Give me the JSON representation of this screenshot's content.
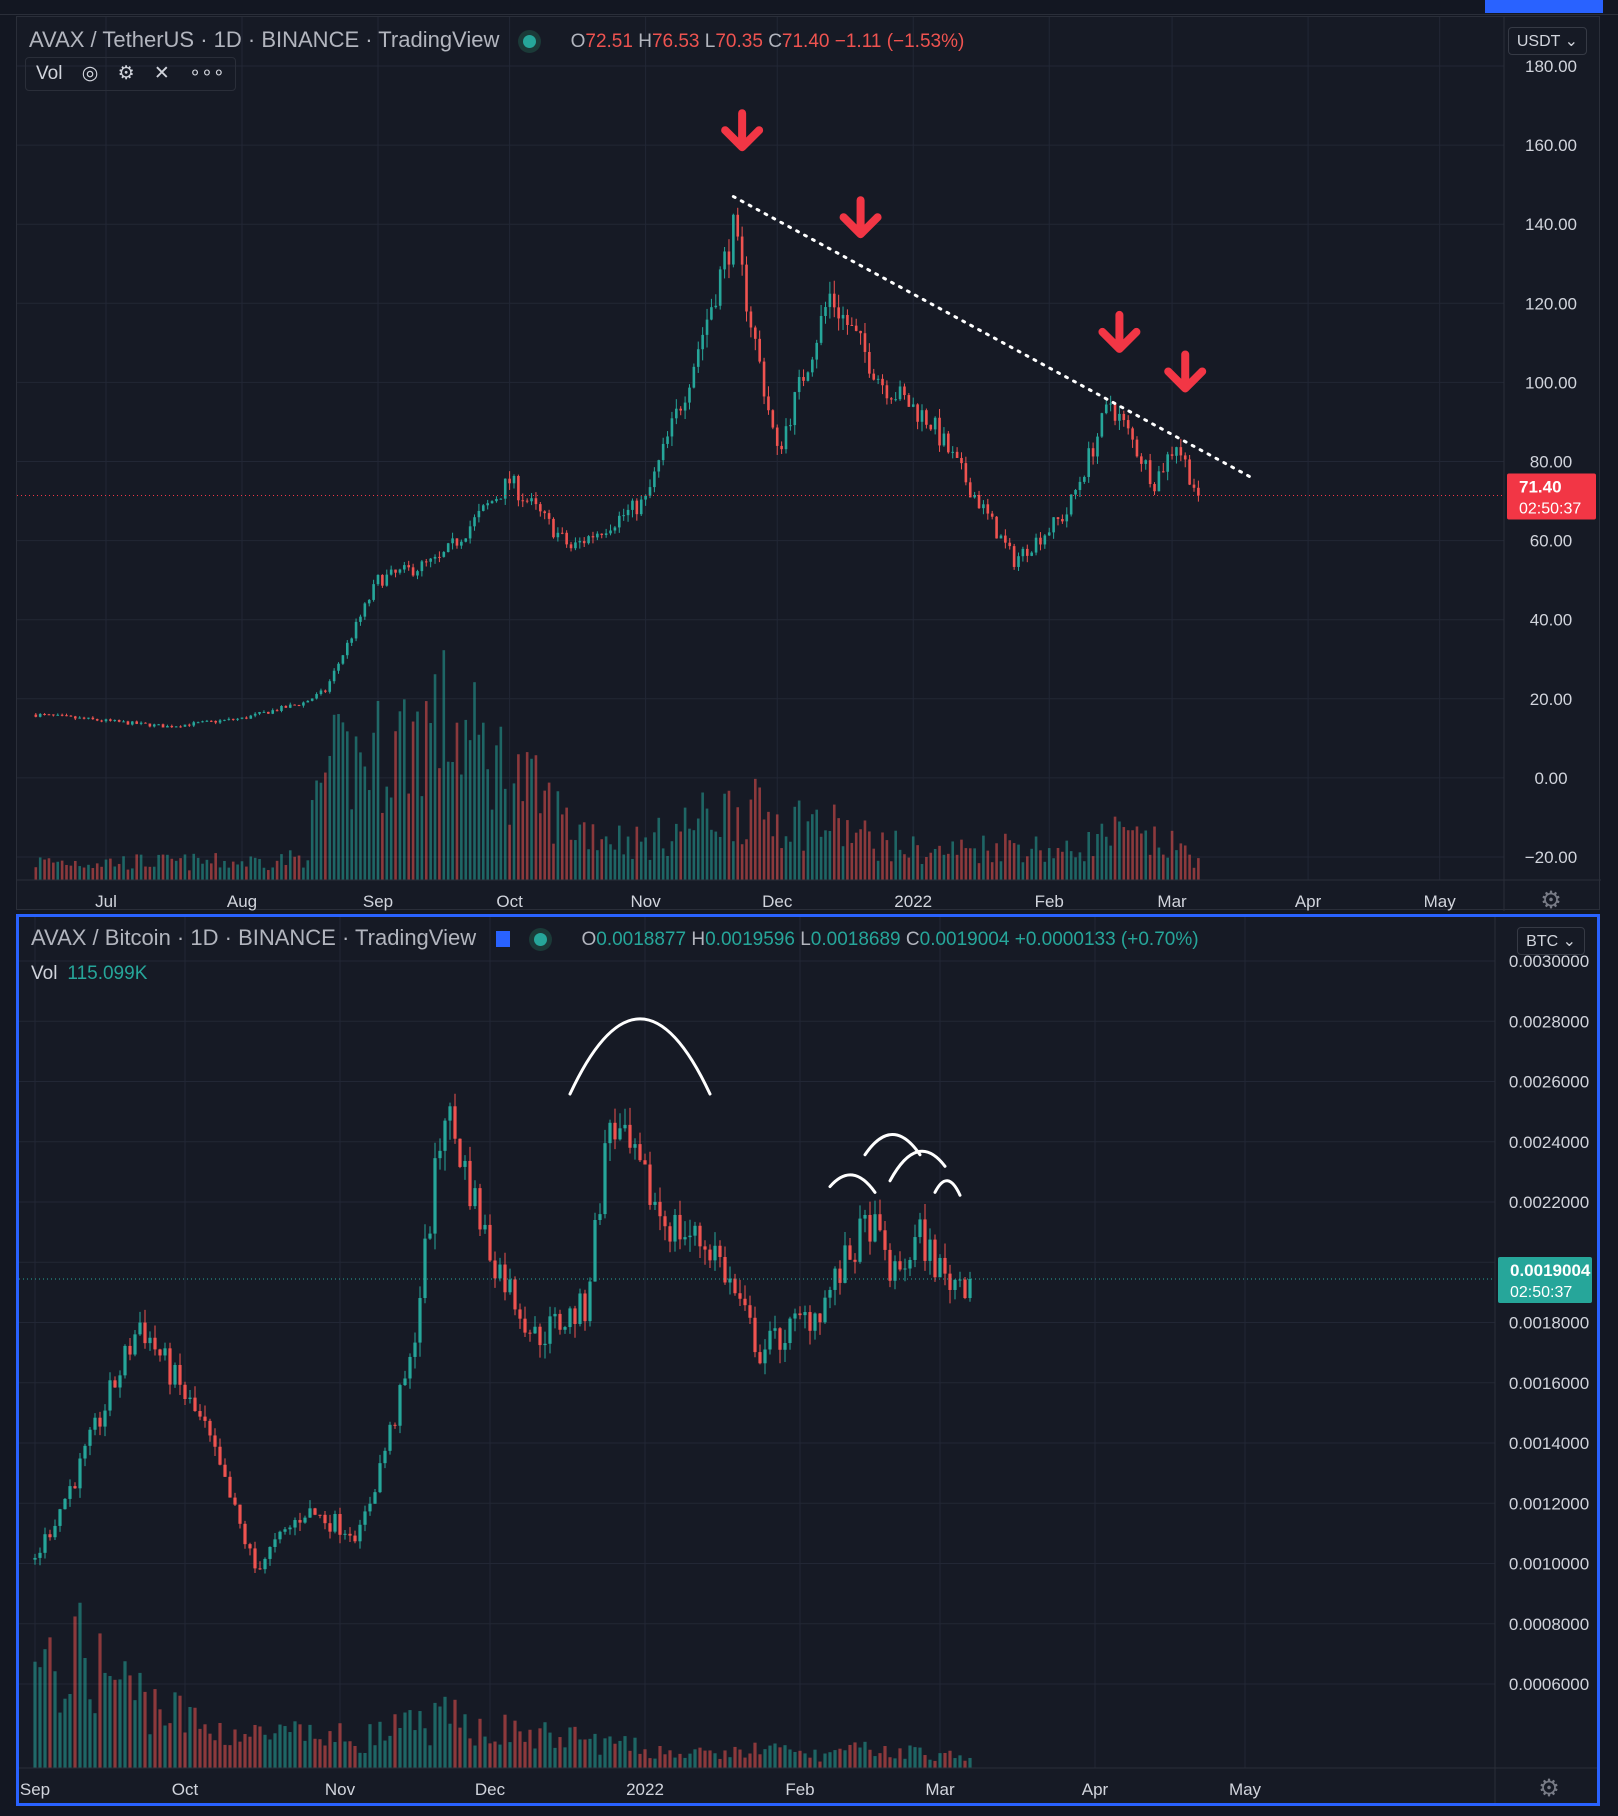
{
  "colors": {
    "up": "#26a69a",
    "down": "#ef5350",
    "background": "#161a25",
    "grid": "#222735",
    "text": "#d1d4dc",
    "accent": "#2962ff",
    "annotation_red": "#f23645"
  },
  "top_pane": {
    "symbol": "AVAX / TetherUS",
    "interval": "1D",
    "exchange": "BINANCE",
    "source": "TradingView",
    "open_label": "O",
    "open": "72.51",
    "high_label": "H",
    "high": "76.53",
    "low_label": "L",
    "low": "70.35",
    "close_label": "C",
    "close": "71.40",
    "change": "−1.11 (−1.53%)",
    "vol_label": "Vol",
    "icons": [
      "eye-icon",
      "gear-icon",
      "close-icon",
      "more-icon"
    ],
    "currency_button": "USDT",
    "last_price": "71.40",
    "countdown": "02:50:37",
    "time_labels": [
      "Jul",
      "Aug",
      "Sep",
      "Oct",
      "Nov",
      "Dec",
      "2022",
      "Feb",
      "Mar",
      "Apr",
      "May"
    ]
  },
  "bottom_pane": {
    "symbol": "AVAX / Bitcoin",
    "interval": "1D",
    "exchange": "BINANCE",
    "source": "TradingView",
    "open_label": "O",
    "open": "0.0018877",
    "high_label": "H",
    "high": "0.0019596",
    "low_label": "L",
    "low": "0.0018689",
    "close_label": "C",
    "close": "0.0019004",
    "change": "+0.0000133 (+0.70%)",
    "vol_label": "Vol",
    "vol_value": "115.099K",
    "currency_button": "BTC",
    "last_price": "0.0019004",
    "countdown": "02:50:37",
    "time_labels": [
      "Sep",
      "Oct",
      "Nov",
      "Dec",
      "2022",
      "Feb",
      "Mar",
      "Apr",
      "May"
    ]
  },
  "chart_data": [
    {
      "type": "candlestick",
      "title": "AVAX / TetherUS · 1D · BINANCE",
      "ylim": [
        -20,
        180
      ],
      "y_ticks": [
        "180.00",
        "160.00",
        "140.00",
        "120.00",
        "100.00",
        "80.00",
        "60.00",
        "40.00",
        "20.00",
        "0.00",
        "−20.00"
      ],
      "x": [
        "2021-06-15",
        "2021-07-15",
        "2021-08-01",
        "2021-08-15",
        "2021-08-20",
        "2021-09-01",
        "2021-09-15",
        "2021-10-01",
        "2021-10-15",
        "2021-11-01",
        "2021-11-10",
        "2021-11-21",
        "2021-12-01",
        "2021-12-13",
        "2021-12-25",
        "2022-01-05",
        "2022-01-24",
        "2022-02-05",
        "2022-02-15",
        "2022-02-25",
        "2022-03-02",
        "2022-03-07"
      ],
      "close": [
        16,
        13,
        15,
        19,
        22,
        50,
        55,
        75,
        58,
        70,
        98,
        138,
        82,
        122,
        100,
        90,
        55,
        67,
        95,
        75,
        85,
        71.4
      ],
      "volume_relative": [
        0.1,
        0.1,
        0.1,
        0.12,
        0.6,
        0.7,
        0.9,
        0.6,
        0.3,
        0.2,
        0.3,
        0.4,
        0.35,
        0.3,
        0.2,
        0.15,
        0.2,
        0.15,
        0.25,
        0.2,
        0.18,
        0.12
      ],
      "annotations": [
        "dotted descending trendline from the Nov 2021 high through the lower highs of Dec, Feb and Mar",
        "red down arrows at 4 lower highs"
      ]
    },
    {
      "type": "candlestick",
      "title": "AVAX / Bitcoin · 1D · BINANCE",
      "ylim": [
        0.0005,
        0.003
      ],
      "y_ticks": [
        "0.0030000",
        "0.0028000",
        "0.0026000",
        "0.0024000",
        "0.0022000",
        "0.0020000",
        "0.0018000",
        "0.0016000",
        "0.0014000",
        "0.0012000",
        "0.0010000",
        "0.0008000",
        "0.0006000"
      ],
      "x": [
        "2021-09-01",
        "2021-09-10",
        "2021-09-22",
        "2021-10-05",
        "2021-10-15",
        "2021-10-25",
        "2021-11-05",
        "2021-11-15",
        "2021-11-22",
        "2021-12-01",
        "2021-12-10",
        "2021-12-20",
        "2021-12-25",
        "2022-01-05",
        "2022-01-15",
        "2022-01-24",
        "2022-02-05",
        "2022-02-15",
        "2022-02-20",
        "2022-02-25",
        "2022-03-02",
        "2022-03-07"
      ],
      "close": [
        0.00093,
        0.00125,
        0.00175,
        0.00138,
        0.0009,
        0.0011,
        0.00102,
        0.0016,
        0.0025,
        0.002,
        0.0017,
        0.0018,
        0.00245,
        0.0021,
        0.002,
        0.00165,
        0.0018,
        0.0021,
        0.0019,
        0.00205,
        0.0019,
        0.0019004
      ],
      "volume_relative": [
        0.5,
        0.7,
        0.45,
        0.25,
        0.2,
        0.2,
        0.18,
        0.25,
        0.3,
        0.25,
        0.2,
        0.18,
        0.15,
        0.1,
        0.08,
        0.12,
        0.08,
        0.12,
        0.1,
        0.1,
        0.08,
        0.05
      ],
      "annotations": [
        "hand-drawn arcs above the Dec 2021 peak and the Feb 2022 highs"
      ]
    }
  ]
}
